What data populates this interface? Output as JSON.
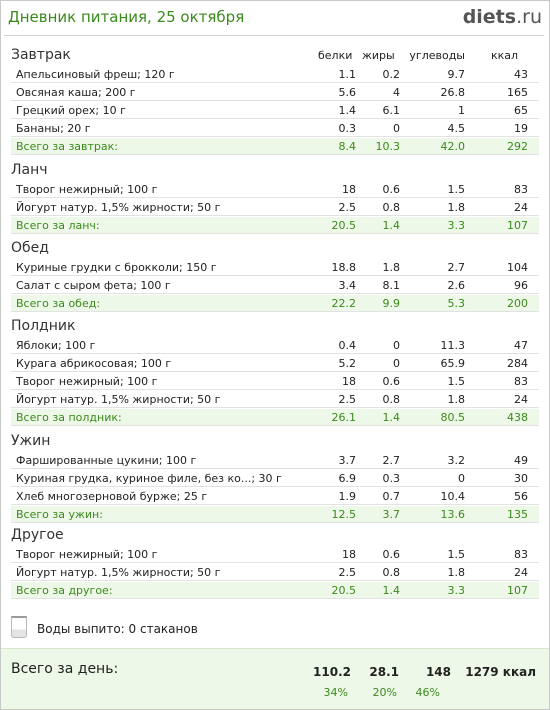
{
  "header": {
    "title": "Дневник питания, 25 октября",
    "logo_main": "diets",
    "logo_tld": ".ru"
  },
  "columns": {
    "protein": "белки",
    "fat": "жиры",
    "carbs": "углеводы",
    "kcal": "ккал"
  },
  "sections": [
    {
      "title": "Завтрак",
      "items": [
        {
          "name": "Апельсиновый фреш; 120 г",
          "protein": "1.1",
          "fat": "0.2",
          "carbs": "9.7",
          "kcal": "43"
        },
        {
          "name": "Овсяная каша; 200 г",
          "protein": "5.6",
          "fat": "4",
          "carbs": "26.8",
          "kcal": "165"
        },
        {
          "name": "Грецкий орех; 10 г",
          "protein": "1.4",
          "fat": "6.1",
          "carbs": "1",
          "kcal": "65"
        },
        {
          "name": "Бананы; 20 г",
          "protein": "0.3",
          "fat": "0",
          "carbs": "4.5",
          "kcal": "19"
        }
      ],
      "total": {
        "label": "Всего за завтрак:",
        "protein": "8.4",
        "fat": "10.3",
        "carbs": "42.0",
        "kcal": "292"
      }
    },
    {
      "title": "Ланч",
      "items": [
        {
          "name": "Творог нежирный; 100 г",
          "protein": "18",
          "fat": "0.6",
          "carbs": "1.5",
          "kcal": "83"
        },
        {
          "name": "Йогурт натур. 1,5% жирности; 50 г",
          "protein": "2.5",
          "fat": "0.8",
          "carbs": "1.8",
          "kcal": "24"
        }
      ],
      "total": {
        "label": "Всего за ланч:",
        "protein": "20.5",
        "fat": "1.4",
        "carbs": "3.3",
        "kcal": "107"
      }
    },
    {
      "title": "Обед",
      "items": [
        {
          "name": "Куриные грудки с брокколи; 150 г",
          "protein": "18.8",
          "fat": "1.8",
          "carbs": "2.7",
          "kcal": "104"
        },
        {
          "name": "Салат с сыром фета; 100 г",
          "protein": "3.4",
          "fat": "8.1",
          "carbs": "2.6",
          "kcal": "96"
        }
      ],
      "total": {
        "label": "Всего за обед:",
        "protein": "22.2",
        "fat": "9.9",
        "carbs": "5.3",
        "kcal": "200"
      }
    },
    {
      "title": "Полдник",
      "items": [
        {
          "name": "Яблоки; 100 г",
          "protein": "0.4",
          "fat": "0",
          "carbs": "11.3",
          "kcal": "47"
        },
        {
          "name": "Курага абрикосовая; 100 г",
          "protein": "5.2",
          "fat": "0",
          "carbs": "65.9",
          "kcal": "284"
        },
        {
          "name": "Творог нежирный; 100 г",
          "protein": "18",
          "fat": "0.6",
          "carbs": "1.5",
          "kcal": "83"
        },
        {
          "name": "Йогурт натур. 1,5% жирности; 50 г",
          "protein": "2.5",
          "fat": "0.8",
          "carbs": "1.8",
          "kcal": "24"
        }
      ],
      "total": {
        "label": "Всего за полдник:",
        "protein": "26.1",
        "fat": "1.4",
        "carbs": "80.5",
        "kcal": "438"
      }
    },
    {
      "title": "Ужин",
      "items": [
        {
          "name": "Фаршированные цукини; 100 г",
          "protein": "3.7",
          "fat": "2.7",
          "carbs": "3.2",
          "kcal": "49"
        },
        {
          "name": "Куриная грудка, куриное филе, без ко...; 30 г",
          "protein": "6.9",
          "fat": "0.3",
          "carbs": "0",
          "kcal": "30"
        },
        {
          "name": "Хлеб многозерновой бурже; 25 г",
          "protein": "1.9",
          "fat": "0.7",
          "carbs": "10.4",
          "kcal": "56"
        }
      ],
      "total": {
        "label": "Всего за ужин:",
        "protein": "12.5",
        "fat": "3.7",
        "carbs": "13.6",
        "kcal": "135"
      }
    },
    {
      "title": "Другое",
      "items": [
        {
          "name": "Творог нежирный; 100 г",
          "protein": "18",
          "fat": "0.6",
          "carbs": "1.5",
          "kcal": "83"
        },
        {
          "name": "Йогурт натур. 1,5% жирности; 50 г",
          "protein": "2.5",
          "fat": "0.8",
          "carbs": "1.8",
          "kcal": "24"
        }
      ],
      "total": {
        "label": "Всего за другое:",
        "protein": "20.5",
        "fat": "1.4",
        "carbs": "3.3",
        "kcal": "107"
      }
    }
  ],
  "water": {
    "icon": "glass-icon",
    "text": "Воды выпито: 0 стаканов"
  },
  "daily": {
    "label": "Всего за день:",
    "protein": "110.2",
    "fat": "28.1",
    "carbs": "148",
    "kcal": "1279 ккал",
    "protein_pct": "34%",
    "fat_pct": "20%",
    "carbs_pct": "46%"
  },
  "colors": {
    "accent_green": "#3a8a1c",
    "total_bg": "#eef8e8"
  }
}
